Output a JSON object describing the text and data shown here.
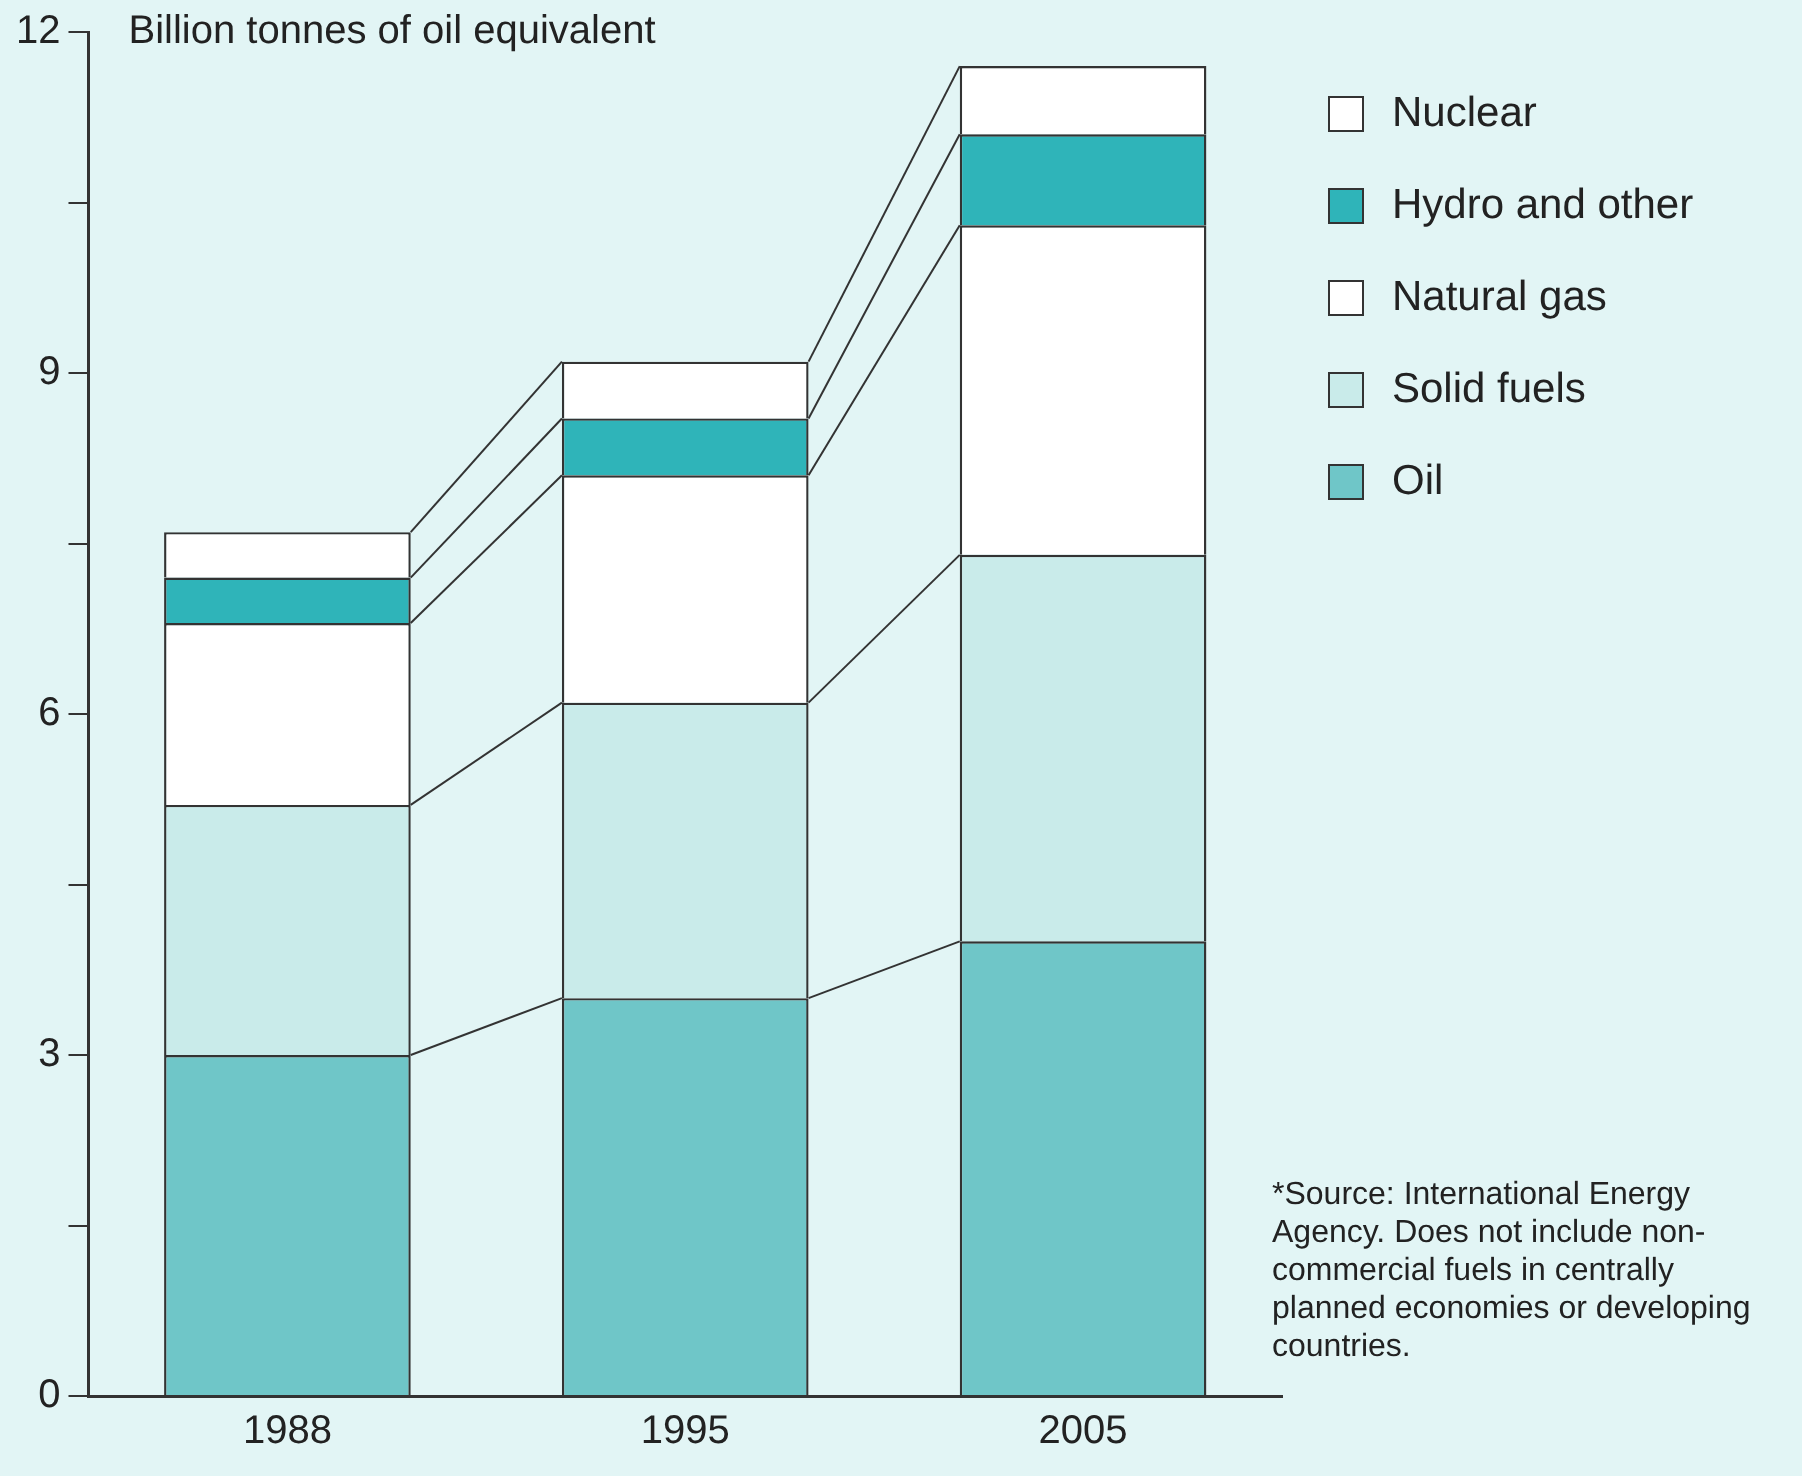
{
  "chart_data": {
    "type": "bar",
    "stacked": true,
    "ylabel": "Billion tonnes of oil equivalent",
    "categories": [
      "1988",
      "1995",
      "2005"
    ],
    "series": [
      {
        "name": "Oil",
        "color": "#6fc6c8",
        "values": [
          3.0,
          3.5,
          4.0
        ]
      },
      {
        "name": "Solid fuels",
        "color": "#c9ebea",
        "values": [
          2.2,
          2.6,
          3.4
        ]
      },
      {
        "name": "Natural gas",
        "color": "#ffffff",
        "values": [
          1.6,
          2.0,
          2.9
        ]
      },
      {
        "name": "Hydro and other",
        "color": "#2fb4b9",
        "values": [
          0.4,
          0.5,
          0.8
        ]
      },
      {
        "name": "Nuclear",
        "color": "#ffffff",
        "values": [
          0.4,
          0.5,
          0.6
        ]
      }
    ],
    "ylim": [
      0,
      12
    ],
    "yticks": [
      0,
      {
        "value": 1.5,
        "label": null
      },
      3,
      {
        "value": 4.5,
        "label": null
      },
      6,
      {
        "value": 7.5,
        "label": null
      },
      9,
      {
        "value": 10.5,
        "label": null
      },
      12
    ],
    "grid": false,
    "legend": "top right",
    "annotations": [
      "*Source: International Energy Agency. Does not include non-commercial fuels in centrally planned economies or developing countries."
    ]
  }
}
